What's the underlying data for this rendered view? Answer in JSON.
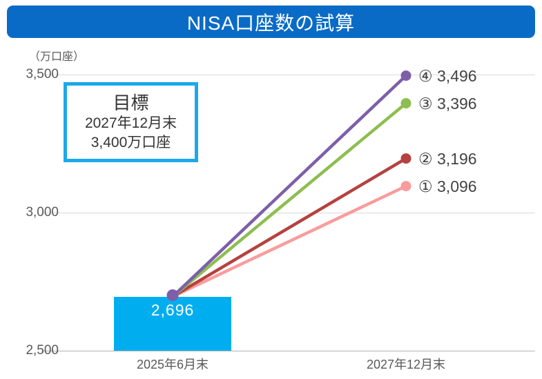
{
  "header": {
    "background_color": "#0a6bc6"
  },
  "chart_data": {
    "type": "combo",
    "title": "NISA口座数の試算",
    "unit_label": "（万口座）",
    "x_categories": [
      "2025年6月末",
      "2027年12月末"
    ],
    "y_axis": {
      "min": 2500,
      "max": 3500,
      "ticks": [
        3500,
        3000,
        2500
      ],
      "tick_labels": [
        "3,500",
        "3,000",
        "2,500"
      ],
      "grid": true
    },
    "bar": {
      "category": "2025年6月末",
      "value": 2696,
      "label": "2,696",
      "color": "#00aeef"
    },
    "lines": [
      {
        "name": "④",
        "start_value": 2696,
        "end_value": 3496,
        "label": "④ 3,496",
        "color": "#7d5fa9"
      },
      {
        "name": "③",
        "start_value": 2696,
        "end_value": 3396,
        "label": "③ 3,396",
        "color": "#8dbe50"
      },
      {
        "name": "②",
        "start_value": 2696,
        "end_value": 3196,
        "label": "② 3,196",
        "color": "#b5423f"
      },
      {
        "name": "①",
        "start_value": 2696,
        "end_value": 3096,
        "label": "① 3,096",
        "color": "#f99c9d"
      }
    ],
    "annotation": {
      "lines": [
        "目標",
        "2027年12月末",
        "3,400万口座"
      ],
      "border_color": "#1ba9e9"
    }
  }
}
